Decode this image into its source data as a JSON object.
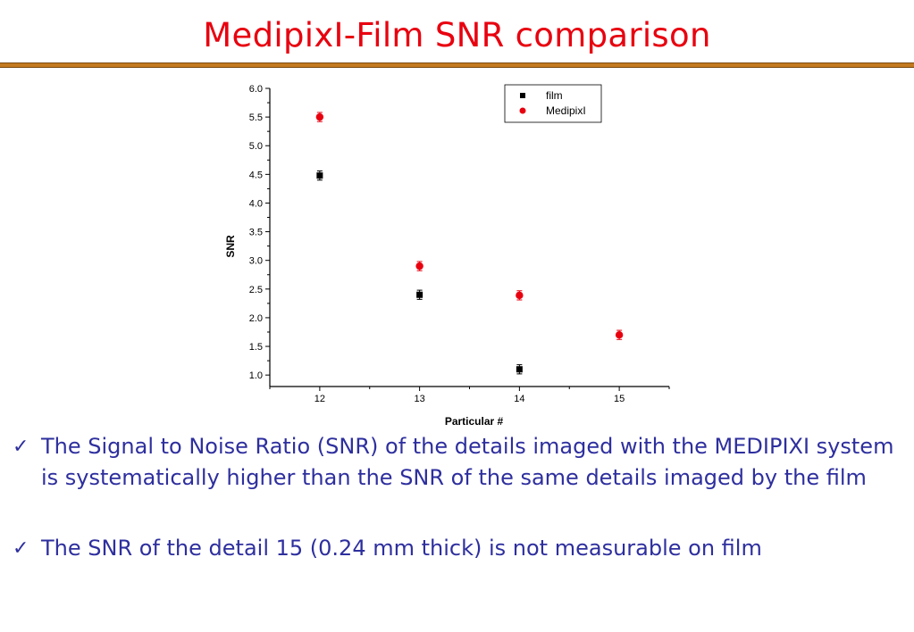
{
  "slide": {
    "title": "MedipixI-Film SNR comparison"
  },
  "bullets": [
    {
      "icon": "check-icon",
      "text": "The Signal to Noise Ratio (SNR) of the details imaged with the MEDIPIXI system is systematically higher than the SNR of the same details imaged by the film"
    },
    {
      "icon": "check-icon",
      "text": "The SNR of the detail 15 (0.24 mm thick) is not measurable on film"
    }
  ],
  "colors": {
    "title": "#e8000f",
    "rule": "#c47a1e",
    "bullet_text": "#2e2f9e",
    "film": "#000000",
    "medipix": "#e8000f"
  },
  "chart_data": {
    "type": "scatter",
    "title": "",
    "xlabel": "Particular #",
    "ylabel": "SNR",
    "xlim": [
      11.5,
      15.5
    ],
    "ylim": [
      0.8,
      6.0
    ],
    "x_ticks": [
      12,
      13,
      14,
      15
    ],
    "x_tick_labels": [
      "12",
      "13",
      "14",
      "15"
    ],
    "y_ticks": [
      1.0,
      1.5,
      2.0,
      2.5,
      3.0,
      3.5,
      4.0,
      4.5,
      5.0,
      5.5,
      6.0
    ],
    "y_tick_labels": [
      "1.0",
      "1.5",
      "2.0",
      "2.5",
      "3.0",
      "3.5",
      "4.0",
      "4.5",
      "5.0",
      "5.5",
      "6.0"
    ],
    "grid": false,
    "legend_position": "top-right",
    "series": [
      {
        "name": "film",
        "marker": "square",
        "color": "#000000",
        "x": [
          12,
          13,
          14
        ],
        "y": [
          4.48,
          2.4,
          1.1
        ],
        "error": [
          0.08,
          0.08,
          0.08
        ]
      },
      {
        "name": "MedipixI",
        "marker": "circle",
        "color": "#e8000f",
        "x": [
          12,
          13,
          14,
          15
        ],
        "y": [
          5.5,
          2.9,
          2.39,
          1.7
        ],
        "error": [
          0.08,
          0.08,
          0.08,
          0.08
        ]
      }
    ]
  }
}
